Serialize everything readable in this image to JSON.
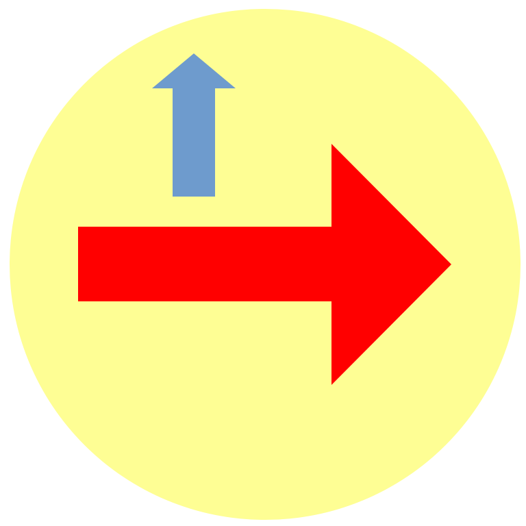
{
  "icon": {
    "name": "right-arrow-with-up-arrow-icon",
    "background_shape": "circle",
    "colors": {
      "page_background": "#ffffff",
      "circle_fill": "#fefe94",
      "main_arrow_fill": "#ff0000",
      "small_arrow_fill": "#6e9bcd"
    },
    "main_arrow": {
      "icon": "arrow-right-icon",
      "direction": "right"
    },
    "small_arrow": {
      "icon": "arrow-up-icon",
      "direction": "up"
    }
  }
}
